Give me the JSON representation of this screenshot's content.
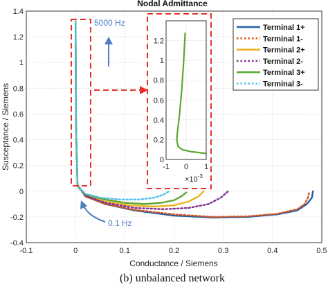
{
  "chart_data": {
    "type": "line",
    "title": "Nodal Admittance",
    "xlabel": "Conductance / Siemens",
    "ylabel": "Susceptance / Siemens",
    "xlim": [
      -0.1,
      0.5
    ],
    "ylim": [
      -0.4,
      1.4
    ],
    "xticks": [
      "-0.1",
      "0",
      "0.1",
      "0.2",
      "0.3",
      "0.4",
      "0.5"
    ],
    "yticks": [
      "-0.4",
      "-0.2",
      "0",
      "0.2",
      "0.4",
      "0.6",
      "0.8",
      "1",
      "1.2",
      "1.4"
    ],
    "grid": true,
    "legend_position": "top-right",
    "series": [
      {
        "name": "Terminal 1+",
        "color": "#1f5fa8",
        "style": "solid",
        "x": [
          0,
          0.001,
          0.004,
          0.02,
          0.06,
          0.12,
          0.2,
          0.28,
          0.35,
          0.41,
          0.45,
          0.47,
          0.48,
          0.482
        ],
        "y": [
          1.32,
          0.5,
          0.05,
          -0.04,
          -0.1,
          -0.15,
          -0.19,
          -0.205,
          -0.2,
          -0.18,
          -0.15,
          -0.1,
          -0.05,
          0
        ]
      },
      {
        "name": "Terminal 1-",
        "color": "#d9541e",
        "style": "dotted",
        "x": [
          0,
          0.001,
          0.004,
          0.02,
          0.06,
          0.12,
          0.2,
          0.28,
          0.35,
          0.41,
          0.45,
          0.465,
          0.472,
          0.475
        ],
        "y": [
          1.32,
          0.5,
          0.05,
          -0.04,
          -0.1,
          -0.145,
          -0.18,
          -0.2,
          -0.195,
          -0.175,
          -0.14,
          -0.1,
          -0.05,
          0
        ]
      },
      {
        "name": "Terminal 2+",
        "color": "#edb120",
        "style": "solid",
        "x": [
          0,
          0.001,
          0.004,
          0.02,
          0.06,
          0.11,
          0.16,
          0.2,
          0.23,
          0.25,
          0.26
        ],
        "y": [
          1.32,
          0.5,
          0.04,
          -0.03,
          -0.08,
          -0.11,
          -0.12,
          -0.11,
          -0.08,
          -0.04,
          0
        ]
      },
      {
        "name": "Terminal 2-",
        "color": "#7e2f8e",
        "style": "dotted",
        "x": [
          0,
          0.001,
          0.004,
          0.02,
          0.06,
          0.12,
          0.18,
          0.23,
          0.27,
          0.295,
          0.31
        ],
        "y": [
          1.32,
          0.5,
          0.04,
          -0.035,
          -0.09,
          -0.13,
          -0.14,
          -0.13,
          -0.1,
          -0.05,
          0
        ]
      },
      {
        "name": "Terminal 3+",
        "color": "#5aa832",
        "style": "solid",
        "x": [
          0,
          0.001,
          0.004,
          0.02,
          0.06,
          0.1,
          0.14,
          0.175,
          0.2,
          0.215,
          0.225
        ],
        "y": [
          1.32,
          0.5,
          0.04,
          -0.025,
          -0.065,
          -0.09,
          -0.1,
          -0.09,
          -0.07,
          -0.04,
          -0.01
        ]
      },
      {
        "name": "Terminal 3-",
        "color": "#4dbeee",
        "style": "dotted",
        "x": [
          0,
          0.001,
          0.004,
          0.02,
          0.05,
          0.09,
          0.13,
          0.16,
          0.18,
          0.19
        ],
        "y": [
          1.32,
          0.5,
          0.04,
          -0.02,
          -0.05,
          -0.065,
          -0.065,
          -0.05,
          -0.025,
          0
        ]
      }
    ],
    "inset": {
      "xlim": [
        -1,
        1
      ],
      "ylim": [
        0,
        1.4
      ],
      "xticks": [
        "-1",
        "0",
        "1"
      ],
      "yticks": [
        "0",
        "0.2",
        "0.4",
        "0.6",
        "0.8",
        "1",
        "1.2"
      ],
      "x_multiplier_base": "×10",
      "x_multiplier_exp": "-3",
      "line_color": "#5aa832",
      "x": [
        -0.05,
        -0.12,
        -0.22,
        -0.33,
        -0.42,
        -0.47,
        -0.4,
        -0.2,
        0.2,
        0.6,
        1.0
      ],
      "y": [
        1.28,
        1.0,
        0.7,
        0.45,
        0.3,
        0.2,
        0.13,
        0.1,
        0.08,
        0.07,
        0.06
      ]
    },
    "annotations": {
      "high_freq": "5000 Hz",
      "low_freq": "0.1 Hz"
    }
  },
  "colors": {
    "annotation_blue": "#4a7ec0",
    "highlight_red": "#e8302a"
  },
  "caption": "(b) unbalanced network"
}
